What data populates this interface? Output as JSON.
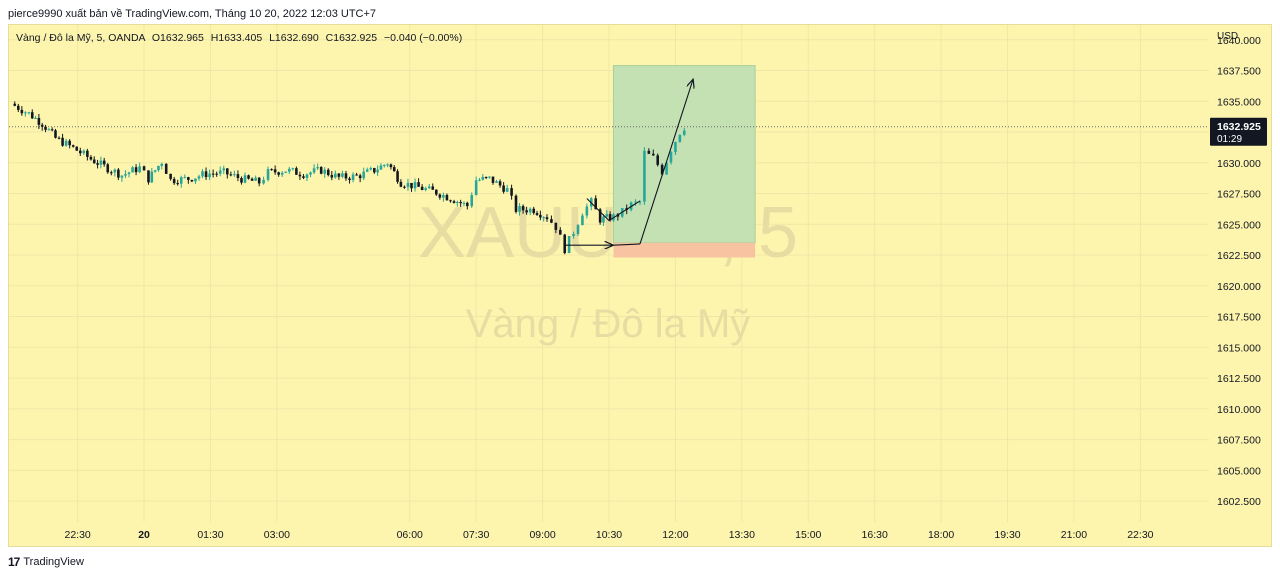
{
  "header": {
    "publish_line": "pierce9990 xuất bản về TradingView.com, Tháng 10 20, 2022 12:03 UTC+7"
  },
  "legend": {
    "symbol_line": "Vàng / Đô la Mỹ, 5, OANDA",
    "open": "O1632.965",
    "high": "H1633.405",
    "low": "L1632.690",
    "close": "C1632.925",
    "change": "−0.040 (−0.00%)"
  },
  "watermark": {
    "ticker": "XAUUSD, 5",
    "name": "Vàng / Đô la Mỹ"
  },
  "footer": {
    "logo": "17",
    "brand": "TradingView"
  },
  "colors": {
    "background": "#fdf5ad",
    "candle_up": "#26a69a",
    "candle_down": "#131722",
    "target_zone": "#c3e1b3",
    "stop_zone": "#f8c3a0",
    "price_label_bg": "#131722"
  },
  "chart_data": {
    "type": "candlestick",
    "symbol": "XAUUSD",
    "interval": "5",
    "currency_label": "USD",
    "y_ticks": [
      "1640.000",
      "1637.500",
      "1635.000",
      "1632.500",
      "1630.000",
      "1627.500",
      "1625.000",
      "1622.500",
      "1620.000",
      "1617.500",
      "1615.000",
      "1612.500",
      "1610.000",
      "1607.500",
      "1605.000",
      "1602.500"
    ],
    "ylim": [
      1600.8,
      1641.2
    ],
    "x_ticks": [
      "22:30",
      "20",
      "01:30",
      "03:00",
      "06:00",
      "07:30",
      "09:00",
      "10:30",
      "12:00",
      "13:30",
      "15:00",
      "16:30",
      "18:00",
      "19:30",
      "21:00",
      "22:30"
    ],
    "x_tick_hours": [
      -1.5,
      0,
      1.5,
      3,
      6,
      7.5,
      9,
      10.5,
      12,
      13.5,
      15,
      16.5,
      18,
      19.5,
      21,
      22.5
    ],
    "xlim_hours": [
      -3.05,
      24.05
    ],
    "last_price": "1632.925",
    "countdown": "01:29",
    "price_path": [
      [
        -3.0,
        1634.8
      ],
      [
        -2.6,
        1634.0
      ],
      [
        -2.3,
        1633.2
      ],
      [
        -2.0,
        1632.0
      ],
      [
        -1.6,
        1631.2
      ],
      [
        -1.2,
        1630.3
      ],
      [
        -0.9,
        1629.7
      ],
      [
        -0.5,
        1629.0
      ],
      [
        -0.1,
        1629.6
      ],
      [
        0.1,
        1628.7
      ],
      [
        0.4,
        1630.1
      ],
      [
        0.6,
        1628.6
      ],
      [
        1.0,
        1628.7
      ],
      [
        1.4,
        1629.1
      ],
      [
        1.8,
        1629.2
      ],
      [
        2.2,
        1628.7
      ],
      [
        2.6,
        1628.4
      ],
      [
        2.8,
        1629.2
      ],
      [
        3.2,
        1629.4
      ],
      [
        3.6,
        1629.1
      ],
      [
        4.0,
        1629.4
      ],
      [
        4.4,
        1628.8
      ],
      [
        4.8,
        1628.9
      ],
      [
        5.2,
        1629.4
      ],
      [
        5.5,
        1630.0
      ],
      [
        5.8,
        1628.4
      ],
      [
        6.2,
        1628.0
      ],
      [
        6.6,
        1627.6
      ],
      [
        7.0,
        1627.0
      ],
      [
        7.3,
        1626.5
      ],
      [
        7.5,
        1628.6
      ],
      [
        7.8,
        1628.7
      ],
      [
        8.2,
        1627.8
      ],
      [
        8.4,
        1626.2
      ],
      [
        8.8,
        1626.2
      ],
      [
        9.1,
        1625.6
      ],
      [
        9.3,
        1624.8
      ],
      [
        9.5,
        1623.0
      ],
      [
        9.7,
        1624.4
      ],
      [
        9.9,
        1626.0
      ],
      [
        10.1,
        1626.8
      ],
      [
        10.3,
        1625.4
      ],
      [
        10.6,
        1625.6
      ],
      [
        10.8,
        1626.0
      ],
      [
        11.0,
        1626.6
      ],
      [
        11.2,
        1626.8
      ],
      [
        11.3,
        1630.8
      ],
      [
        11.5,
        1630.4
      ],
      [
        11.7,
        1629.3
      ],
      [
        11.9,
        1631.1
      ],
      [
        12.1,
        1632.5
      ],
      [
        12.2,
        1632.9
      ]
    ],
    "position": {
      "start_hour": 10.6,
      "end_hour": 13.8,
      "entry": 1623.5,
      "target": 1637.9,
      "stop": 1622.3
    },
    "drawn_path": [
      [
        9.5,
        1623.3
      ],
      [
        10.6,
        1623.3
      ],
      [
        11.2,
        1623.4
      ],
      [
        12.4,
        1636.8
      ]
    ],
    "zigzag": [
      [
        10.0,
        1627.1
      ],
      [
        10.5,
        1625.3
      ],
      [
        11.2,
        1626.9
      ]
    ]
  }
}
